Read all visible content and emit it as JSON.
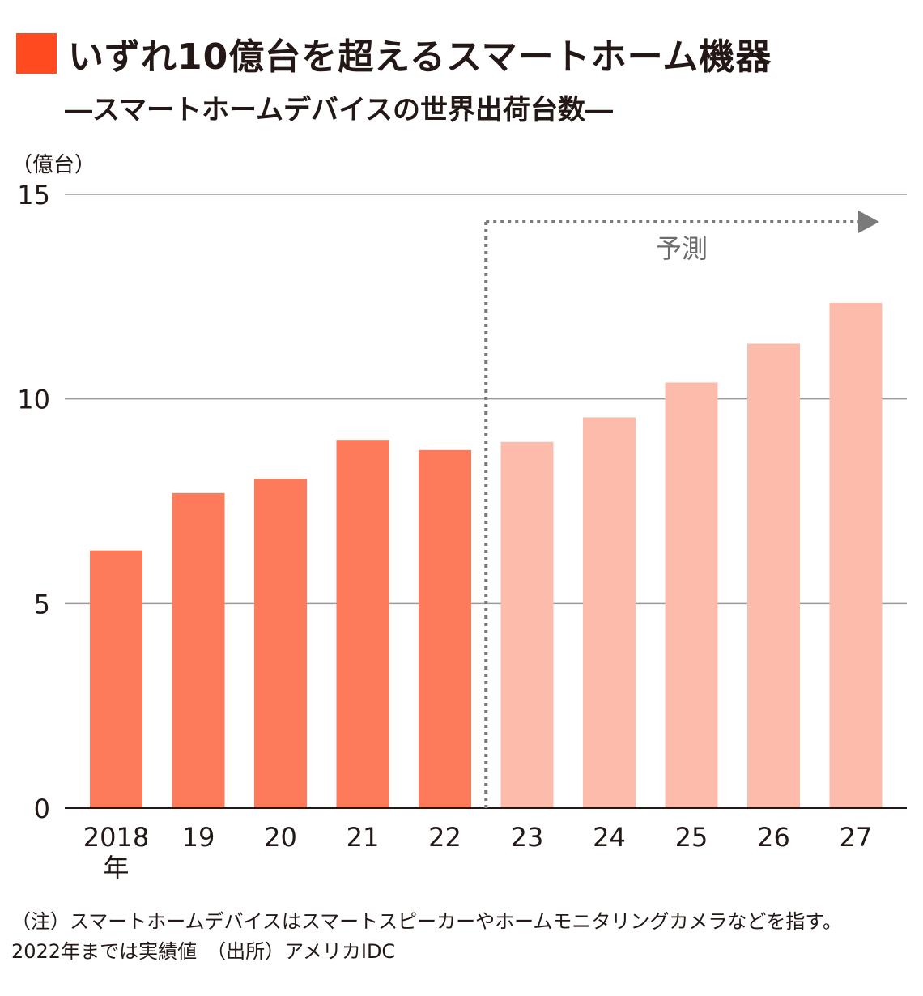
{
  "header": {
    "title": "いずれ10億台を超えるスマートホーム機器",
    "subtitle": "―スマートホームデバイスの世界出荷台数―",
    "accent_color": "#ff4b1f"
  },
  "chart_data": {
    "type": "bar",
    "title": "いずれ10億台を超えるスマートホーム機器",
    "subtitle": "―スマートホームデバイスの世界出荷台数―",
    "ylabel": "（億台）",
    "xlabel": "",
    "categories": [
      "2018",
      "19",
      "20",
      "21",
      "22",
      "23",
      "24",
      "25",
      "26",
      "27"
    ],
    "category_suffix": "年",
    "values": [
      6.3,
      7.7,
      8.05,
      9.0,
      8.75,
      8.95,
      9.55,
      10.4,
      11.35,
      12.35
    ],
    "ylim": [
      0,
      15
    ],
    "yticks": [
      0,
      5,
      10,
      15
    ],
    "grid": true,
    "forecast_label": "予測",
    "forecast_start_index": 5,
    "colors": {
      "actual": "#fd7a5b",
      "forecast": "#fdbcab",
      "grid": "#9a9a9a",
      "axis": "#231815",
      "forecast_line": "#7a7a7a"
    }
  },
  "notes": {
    "line1": "（注）スマートホームデバイスはスマートスピーカーやホームモニタリングカメラなどを指す。",
    "line2": "2022年までは実績値　（出所）アメリカIDC"
  }
}
